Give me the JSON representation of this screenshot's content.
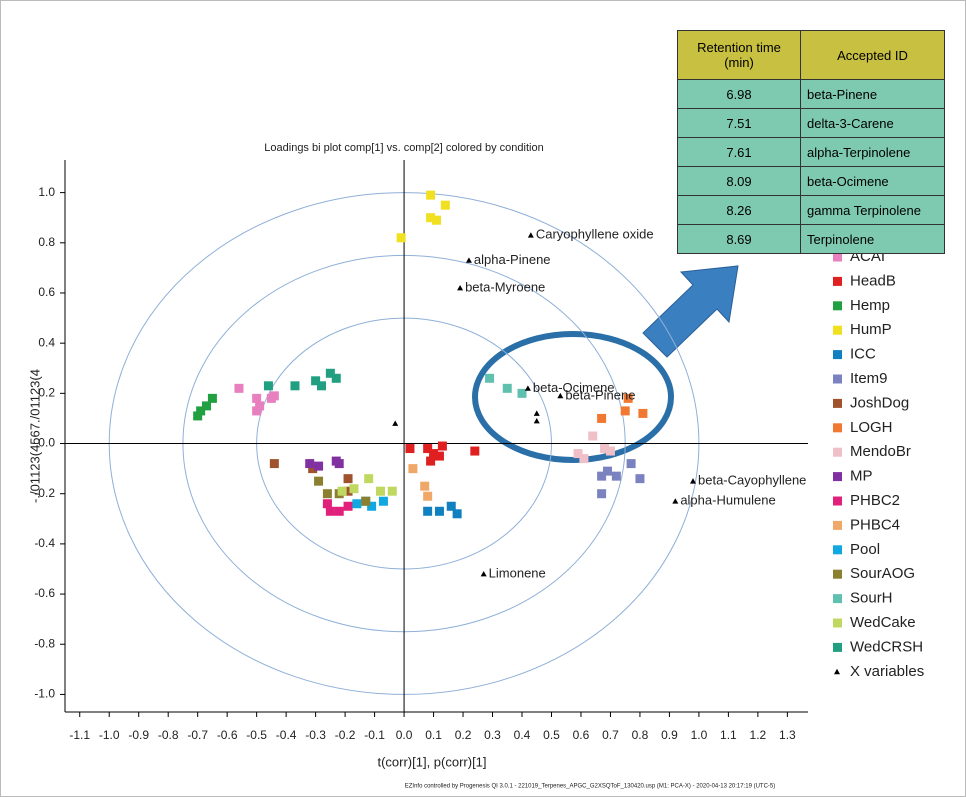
{
  "chart_data": {
    "type": "scatter",
    "title": "Loadings bi plot comp[1] vs. comp[2] colored by condition",
    "x_label": "t(corr)[1], p(corr)[1]",
    "y_label": "-./01123(4567./01123(4",
    "footer": "EZInfo controlled by Progenesis QI 3.0.1 - 221019_Terpenes_APGC_G2XSQToF_130420.usp (M1: PCA-X) - 2020-04-13 20:17:19 (UTC-5)",
    "xlim": [
      -1.15,
      1.37
    ],
    "ylim": [
      -1.07,
      1.13
    ],
    "xticks": [
      -1.1,
      {
        "value": -1,
        "label": "-1.0"
      },
      -0.9,
      -0.8,
      -0.7,
      -0.6,
      -0.5,
      -0.4,
      -0.3,
      -0.2,
      -0.1,
      {
        "value": 0,
        "label": "0.0"
      },
      0.1,
      0.2,
      0.3,
      0.4,
      0.5,
      0.6,
      0.7,
      0.8,
      0.9,
      {
        "value": 1,
        "label": "1.0"
      },
      1.1,
      1.2,
      1.3
    ],
    "yticks": [
      {
        "value": -1,
        "label": "-1.0"
      },
      -0.8,
      -0.6,
      -0.4,
      -0.2,
      {
        "value": 0,
        "label": "-0.0"
      },
      0.2,
      0.4,
      0.6,
      0.8,
      {
        "value": 1,
        "label": "1.0"
      }
    ],
    "circle_radii": [
      0.5,
      0.75,
      1
    ],
    "series": [
      {
        "name": "ACAI",
        "color": "#e87fbf",
        "x": [
          -0.56,
          -0.5,
          -0.49,
          -0.5,
          -0.45,
          -0.44
        ],
        "values": [
          0.22,
          0.18,
          0.15,
          0.13,
          0.18,
          0.19
        ]
      },
      {
        "name": "HeadB",
        "color": "#e02020",
        "x": [
          0.02,
          0.08,
          0.09,
          0.1,
          0.13,
          0.12,
          0.24
        ],
        "values": [
          -0.02,
          -0.02,
          -0.07,
          -0.04,
          -0.01,
          -0.05,
          -0.03
        ]
      },
      {
        "name": "Hemp",
        "color": "#20a040",
        "x": [
          -0.7,
          -0.69,
          -0.67,
          -0.65
        ],
        "values": [
          0.11,
          0.13,
          0.15,
          0.18
        ]
      },
      {
        "name": "HumP",
        "color": "#f0e020",
        "x": [
          0.09,
          0.14,
          0.09,
          0.11,
          -0.01
        ],
        "values": [
          0.99,
          0.95,
          0.9,
          0.89,
          0.82
        ]
      },
      {
        "name": "ICC",
        "color": "#1080c0",
        "x": [
          0.08,
          0.12,
          0.16,
          0.18
        ],
        "values": [
          -0.27,
          -0.27,
          -0.25,
          -0.28
        ]
      },
      {
        "name": "Item9",
        "color": "#7b82c0",
        "x": [
          0.67,
          0.69,
          0.72,
          0.77,
          0.8,
          0.67
        ],
        "values": [
          -0.13,
          -0.11,
          -0.13,
          -0.08,
          -0.14,
          -0.2
        ]
      },
      {
        "name": "JoshDog",
        "color": "#a0522d",
        "x": [
          -0.44,
          -0.19,
          -0.19,
          -0.31
        ],
        "values": [
          -0.08,
          -0.14,
          -0.19,
          -0.1
        ]
      },
      {
        "name": "LOGH",
        "color": "#f07830",
        "x": [
          0.67,
          0.75,
          0.81,
          0.76
        ],
        "values": [
          0.1,
          0.13,
          0.12,
          0.18
        ]
      },
      {
        "name": "MendoBr",
        "color": "#f0c0c8",
        "x": [
          0.59,
          0.61,
          0.64,
          0.68,
          0.7
        ],
        "values": [
          -0.04,
          -0.06,
          0.03,
          -0.02,
          -0.03
        ]
      },
      {
        "name": "MP",
        "color": "#8030a0",
        "x": [
          -0.32,
          -0.29,
          -0.23,
          -0.22
        ],
        "values": [
          -0.08,
          -0.09,
          -0.07,
          -0.08
        ]
      },
      {
        "name": "PHBC2",
        "color": "#e0207a",
        "x": [
          -0.26,
          -0.25,
          -0.22,
          -0.19
        ],
        "values": [
          -0.24,
          -0.27,
          -0.27,
          -0.25
        ]
      },
      {
        "name": "PHBC4",
        "color": "#f0a868",
        "x": [
          0.03,
          0.07,
          0.08
        ],
        "values": [
          -0.1,
          -0.17,
          -0.21
        ]
      },
      {
        "name": "Pool",
        "color": "#10a8e0",
        "x": [
          -0.16,
          -0.13,
          -0.11,
          -0.07
        ],
        "values": [
          -0.24,
          -0.23,
          -0.25,
          -0.23
        ]
      },
      {
        "name": "SourAOG",
        "color": "#8a8030",
        "x": [
          -0.29,
          -0.26,
          -0.22,
          -0.13
        ],
        "values": [
          -0.15,
          -0.2,
          -0.2,
          -0.23
        ]
      },
      {
        "name": "SourH",
        "color": "#60c0b0",
        "x": [
          0.29,
          0.35,
          0.4
        ],
        "values": [
          0.26,
          0.22,
          0.2
        ]
      },
      {
        "name": "WedCake",
        "color": "#c0d860",
        "x": [
          -0.21,
          -0.17,
          -0.12,
          -0.08,
          -0.04
        ],
        "values": [
          -0.19,
          -0.18,
          -0.14,
          -0.19,
          -0.19
        ]
      },
      {
        "name": "WedCRSH",
        "color": "#20a080",
        "x": [
          -0.46,
          -0.37,
          -0.3,
          -0.28,
          -0.25,
          -0.23
        ],
        "values": [
          0.23,
          0.23,
          0.25,
          0.23,
          0.28,
          0.26
        ]
      }
    ],
    "x_variables": {
      "name": "X variables",
      "color": "#000000",
      "x": [
        0.43,
        0.22,
        0.19,
        0.42,
        0.53,
        -0.03,
        0.45,
        0.45,
        0.98,
        0.92,
        0.27
      ],
      "values": [
        0.83,
        0.73,
        0.62,
        0.22,
        0.19,
        0.08,
        0.12,
        0.09,
        -0.15,
        -0.23,
        -0.52
      ],
      "labels": [
        "Caryophyllene oxide",
        "alpha-Pinene",
        "beta-Myroene",
        "beta-Ocimene",
        "beta-Pinene",
        null,
        null,
        null,
        "beta-Cayophyllene",
        "alpha-Humulene",
        "Limonene"
      ]
    }
  },
  "table": {
    "header": [
      "Retention time (min)",
      "Accepted ID"
    ],
    "rows": [
      [
        "6.98",
        "beta-Pinene"
      ],
      [
        "7.51",
        "delta-3-Carene"
      ],
      [
        "7.61",
        "alpha-Terpinolene"
      ],
      [
        "8.09",
        "beta-Ocimene"
      ],
      [
        "8.26",
        "gamma Terpinolene"
      ],
      [
        "8.69",
        "Terpinolene"
      ]
    ]
  }
}
